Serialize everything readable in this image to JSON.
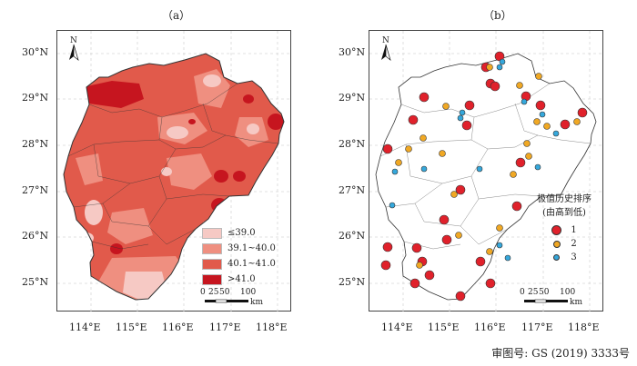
{
  "panel_a": {
    "title": "（a）"
  },
  "panel_b": {
    "title": "（b）"
  },
  "axes": {
    "lat_labels": [
      "30°N",
      "29°N",
      "28°N",
      "27°N",
      "26°N",
      "25°N"
    ],
    "lon_labels": [
      "114°E",
      "115°E",
      "116°E",
      "117°E",
      "118°E"
    ]
  },
  "north_arrow": {
    "label": "N",
    "icon": "north-arrow-icon"
  },
  "legend_a": {
    "items": [
      {
        "label": "≤39.0",
        "color": "#f6c9c4"
      },
      {
        "label": "39.1~40.0",
        "color": "#ef8f80"
      },
      {
        "label": "40.1~41.0",
        "color": "#e15a4b"
      },
      {
        "label": ">41.0",
        "color": "#c6151f"
      }
    ]
  },
  "legend_b": {
    "title_line1": "极值历史排序",
    "title_line2": "(由高到低)",
    "items": [
      {
        "label": "1",
        "color": "#e0212b"
      },
      {
        "label": "2",
        "color": "#f0a824"
      },
      {
        "label": "3",
        "color": "#35a8dc"
      }
    ]
  },
  "scale_bar": {
    "ticks": [
      "0",
      "25",
      "50",
      "100"
    ],
    "unit": "km"
  },
  "credit": "审图号: GS (2019) 3333号"
}
